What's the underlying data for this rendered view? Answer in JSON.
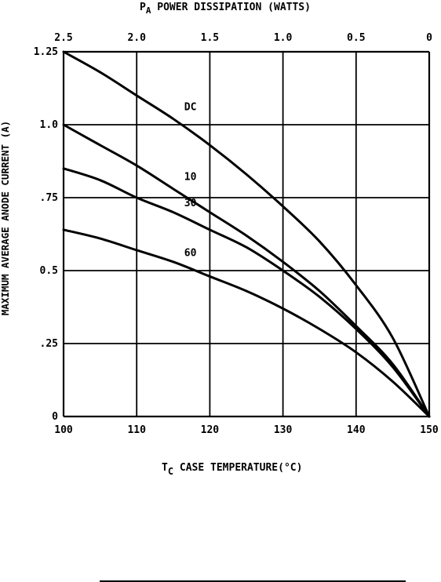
{
  "chart_data": {
    "type": "line",
    "top_axis": {
      "label_main": "P",
      "label_sub": "A",
      "label_rest": " POWER DISSIPATION (WATTS)",
      "ticks": [
        "2.5",
        "2.0",
        "1.5",
        "1.0",
        "0.5",
        "0"
      ]
    },
    "x_axis": {
      "label_main": "T",
      "label_sub": "C",
      "label_rest": " CASE TEMPERATURE(°C)",
      "range": [
        100,
        150
      ],
      "ticks": [
        100,
        110,
        120,
        130,
        140,
        150
      ]
    },
    "y_axis": {
      "label": "MAXIMUM AVERAGE ANODE CURRENT (A)",
      "range": [
        0,
        1.25
      ],
      "ticks": [
        {
          "value": 0,
          "label": "0"
        },
        {
          "value": 0.25,
          "label": ".25"
        },
        {
          "value": 0.5,
          "label": "0.5"
        },
        {
          "value": 0.75,
          "label": ".75"
        },
        {
          "value": 1.0,
          "label": "1.0"
        },
        {
          "value": 1.25,
          "label": "1.25"
        }
      ]
    },
    "grid": true,
    "series": [
      {
        "name": "DC",
        "x": [
          100,
          105,
          110,
          115,
          120,
          125,
          130,
          135,
          140,
          145,
          150
        ],
        "y": [
          1.25,
          1.18,
          1.1,
          1.02,
          0.93,
          0.83,
          0.72,
          0.6,
          0.45,
          0.27,
          0.0
        ]
      },
      {
        "name": "10",
        "x": [
          100,
          105,
          110,
          115,
          120,
          125,
          130,
          135,
          140,
          145,
          150
        ],
        "y": [
          1.0,
          0.93,
          0.86,
          0.78,
          0.7,
          0.62,
          0.53,
          0.43,
          0.31,
          0.18,
          0.0
        ]
      },
      {
        "name": "30",
        "x": [
          100,
          105,
          110,
          115,
          120,
          125,
          130,
          135,
          140,
          145,
          150
        ],
        "y": [
          0.85,
          0.81,
          0.75,
          0.7,
          0.64,
          0.58,
          0.5,
          0.41,
          0.3,
          0.17,
          0.0
        ]
      },
      {
        "name": "60",
        "x": [
          100,
          105,
          110,
          115,
          120,
          125,
          130,
          135,
          140,
          145,
          150
        ],
        "y": [
          0.64,
          0.61,
          0.57,
          0.53,
          0.48,
          0.43,
          0.37,
          0.3,
          0.22,
          0.12,
          0.0
        ]
      }
    ],
    "series_labels": [
      {
        "text": "DC",
        "x": 116.5,
        "y": 1.05
      },
      {
        "text": "10",
        "x": 116.5,
        "y": 0.81
      },
      {
        "text": "30",
        "x": 116.5,
        "y": 0.72
      },
      {
        "text": "60",
        "x": 116.5,
        "y": 0.55
      }
    ]
  }
}
